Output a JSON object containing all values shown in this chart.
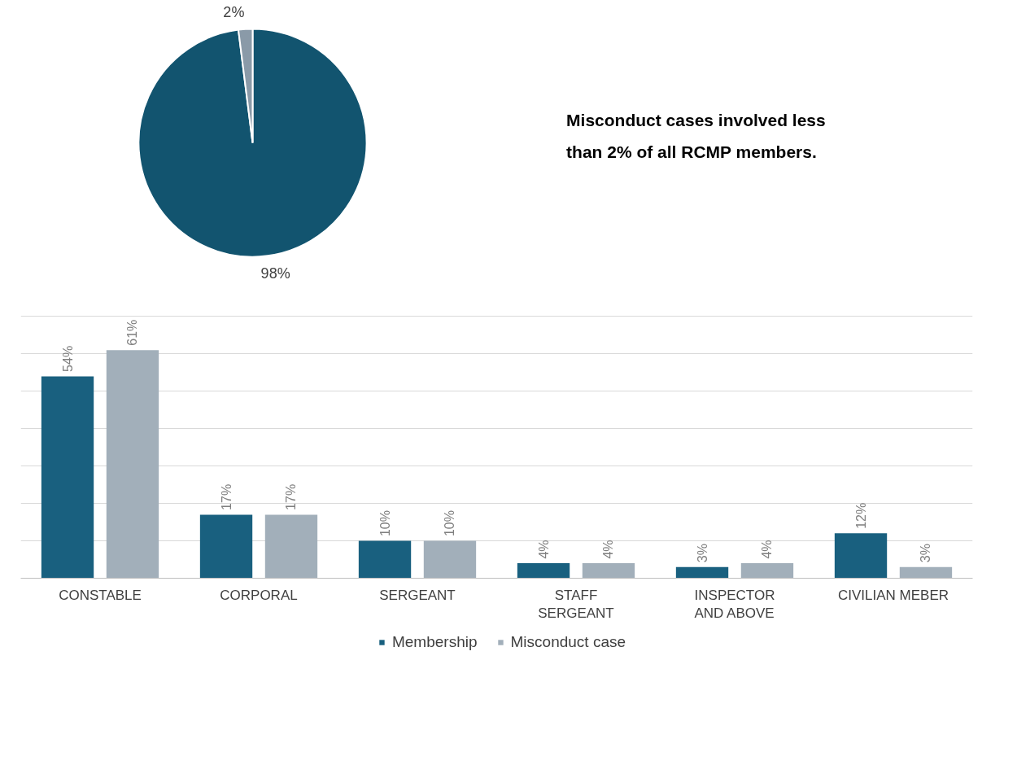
{
  "chart_data": [
    {
      "type": "pie",
      "categories": [
        null,
        null
      ],
      "values": [
        98,
        2
      ],
      "colors": [
        "#12546f",
        "#8a9aa8"
      ],
      "value_labels": [
        "98%",
        "2%"
      ]
    },
    {
      "type": "other",
      "annotations": [
        "Misconduct cases involved less than 2% of all RCMP members."
      ]
    },
    {
      "type": "bar",
      "categories": [
        "CONSTABLE",
        "CORPORAL",
        "SERGEANT",
        "STAFF\nSERGEANT",
        "INSPECTOR\nAND ABOVE",
        "CIVILIAN MEBER"
      ],
      "series": [
        {
          "name": "Membership",
          "color": "#19607f",
          "values": [
            54,
            17,
            10,
            4,
            3,
            12
          ],
          "value_labels": [
            "54%",
            "17%",
            "10%",
            "4%",
            "3%",
            "12%"
          ]
        },
        {
          "name": "Misconduct case",
          "color": "#a2afba",
          "values": [
            61,
            17,
            10,
            4,
            4,
            3
          ],
          "value_labels": [
            "61%",
            "17%",
            "10%",
            "4%",
            "4%",
            "3%"
          ]
        }
      ],
      "yticks": [
        {
          "value": 0,
          "label": null
        },
        {
          "value": 10,
          "label": null
        },
        {
          "value": 20,
          "label": null
        },
        {
          "value": 30,
          "label": null
        },
        {
          "value": 40,
          "label": null
        },
        {
          "value": 50,
          "label": null
        },
        {
          "value": 60,
          "label": null
        },
        {
          "value": 70,
          "label": null
        }
      ],
      "tick_labels": "x",
      "grid": "y",
      "legend": "bottom"
    }
  ]
}
